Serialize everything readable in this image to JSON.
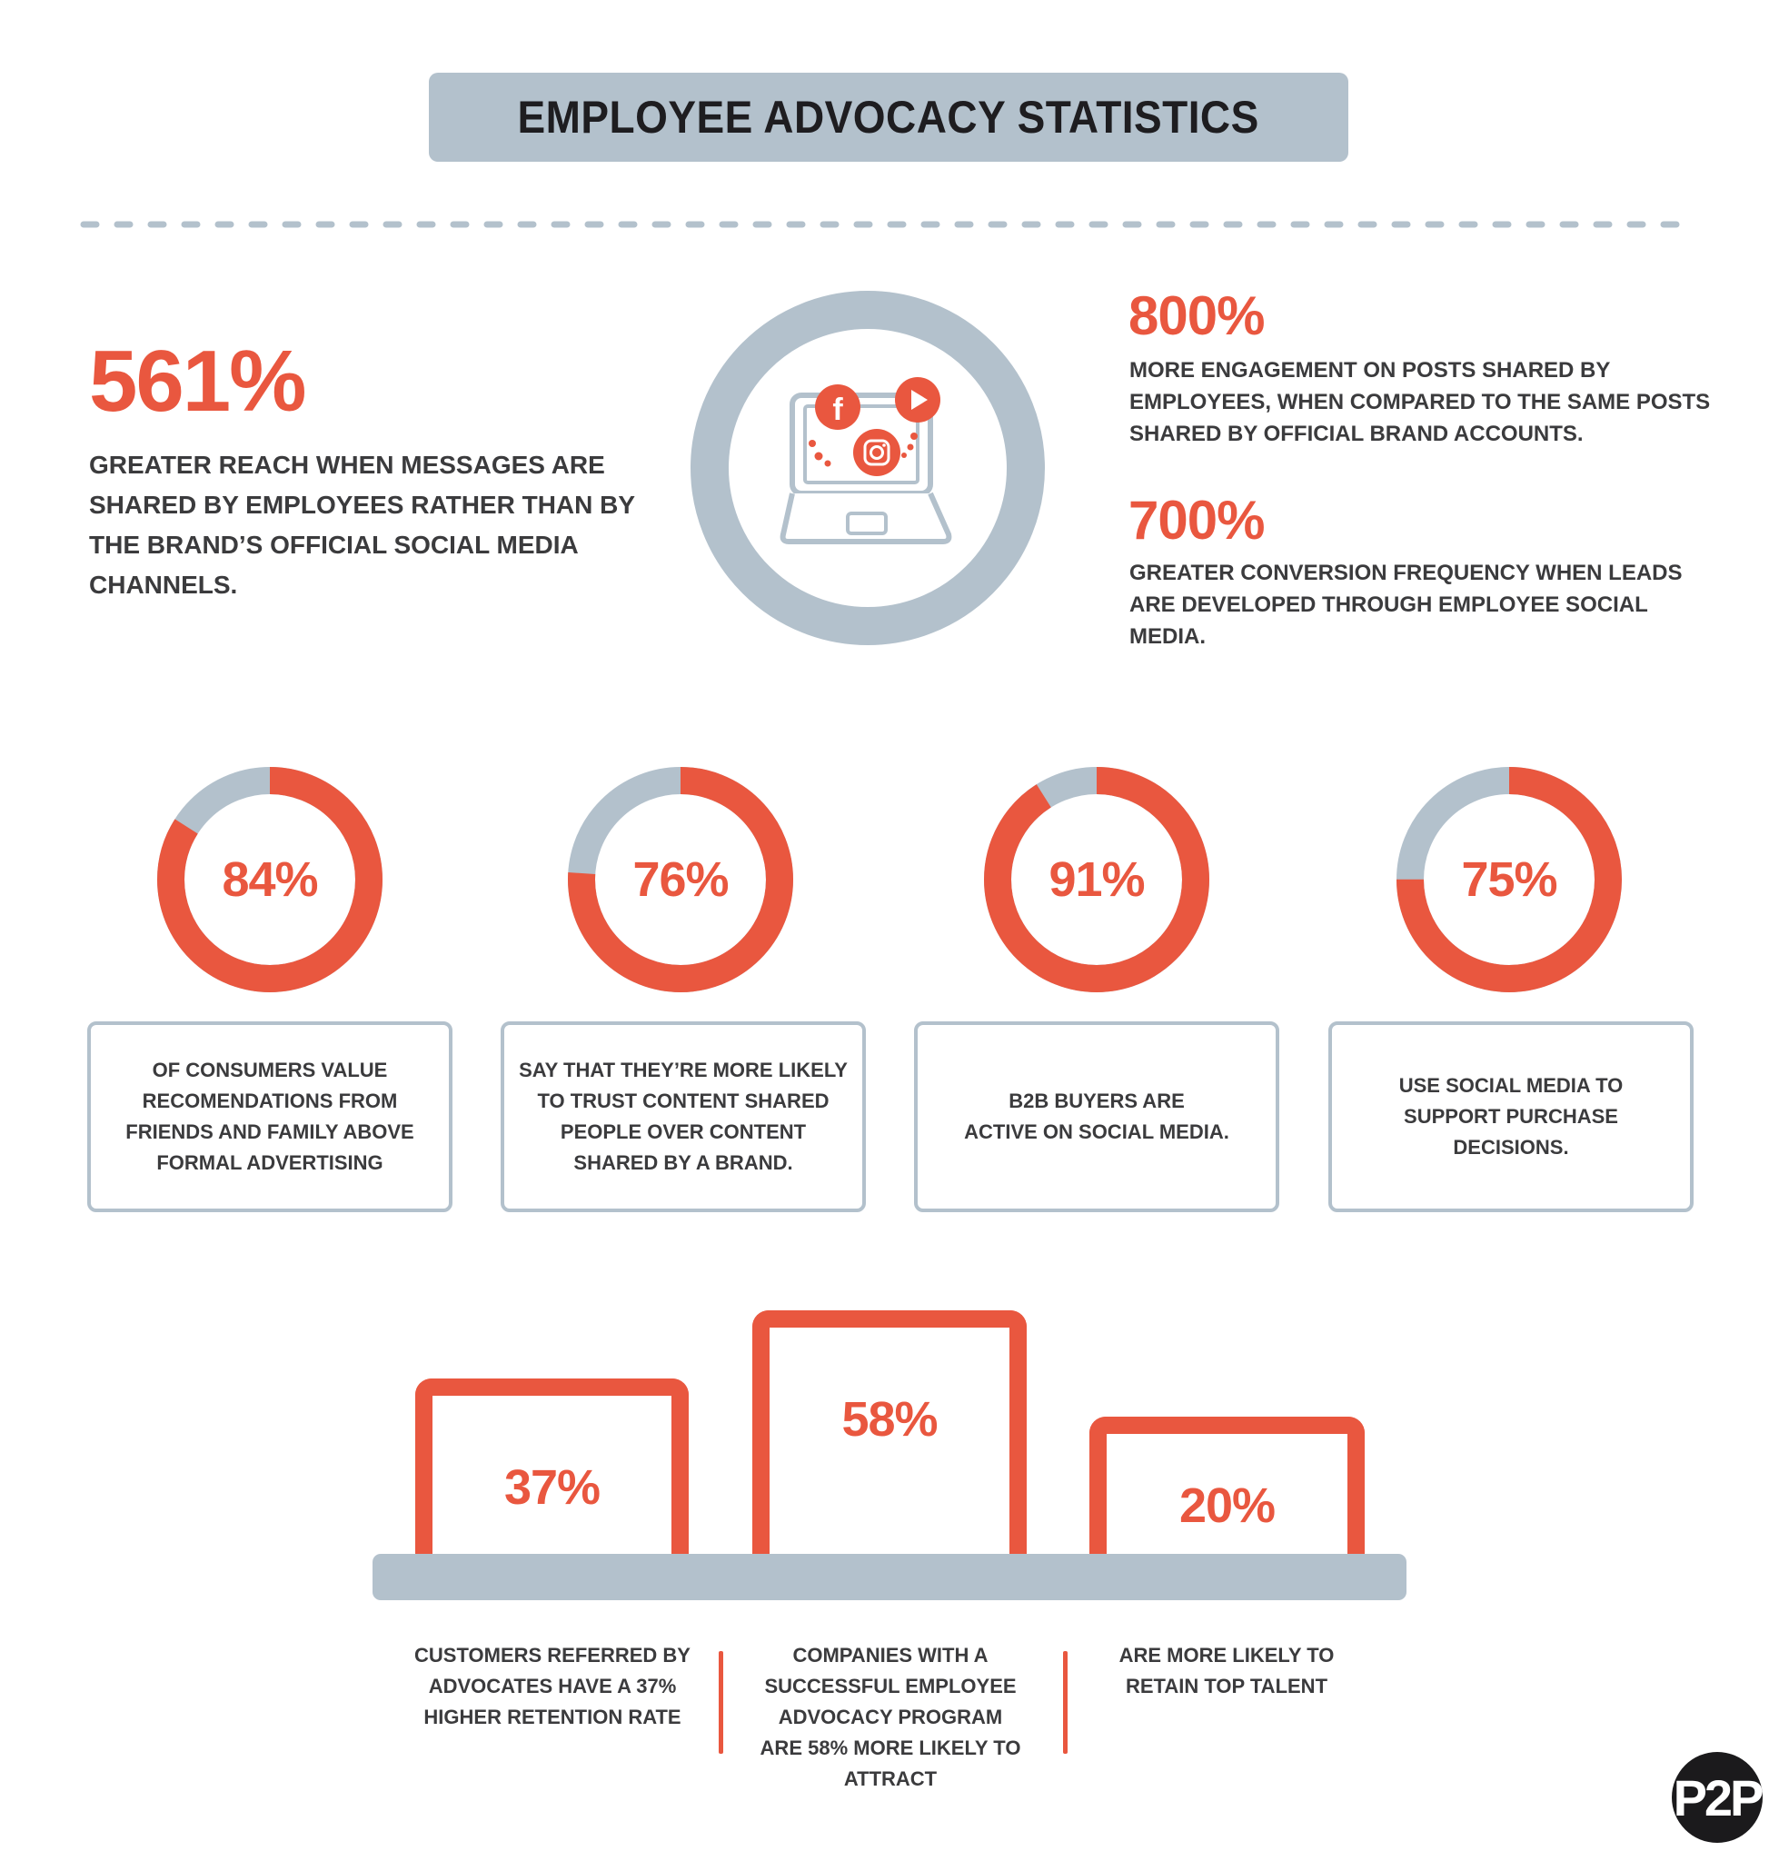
{
  "header": {
    "title": "EMPLOYEE ADVOCACY STATISTICS"
  },
  "colors": {
    "accent": "#e9573f",
    "neutral": "#b3c1cc",
    "text": "#3b3b3d",
    "title_text": "#1e1d20"
  },
  "hero": {
    "left": {
      "value": "561%",
      "description": "GREATER REACH WHEN MESSAGES ARE SHARED BY EMPLOYEES RATHER THAN BY THE BRAND’S OFFICIAL SOCIAL MEDIA CHANNELS."
    },
    "icon": {
      "name": "laptop-social-media-icon",
      "badges": [
        "facebook-icon",
        "instagram-icon",
        "youtube-play-icon"
      ],
      "facebook_glyph": "f"
    },
    "right": [
      {
        "value": "800%",
        "description": "MORE ENGAGEMENT ON POSTS SHARED BY EMPLOYEES, WHEN COMPARED TO THE SAME POSTS SHARED BY OFFICIAL BRAND ACCOUNTS."
      },
      {
        "value": "700%",
        "description": "GREATER CONVERSION FREQUENCY WHEN LEADS ARE DEVELOPED THROUGH EMPLOYEE SOCIAL MEDIA."
      }
    ]
  },
  "donuts": [
    {
      "value": 84,
      "label": "84%",
      "description": "OF CONSUMERS VALUE\nRECOMENDATIONS FROM\nFRIENDS AND FAMILY ABOVE\nFORMAL ADVERTISING"
    },
    {
      "value": 76,
      "label": "76%",
      "description": "SAY THAT THEY’RE MORE LIKELY\nTO TRUST CONTENT SHARED\nPEOPLE OVER CONTENT\nSHARED BY A BRAND."
    },
    {
      "value": 91,
      "label": "91%",
      "description": "B2B BUYERS ARE\nACTIVE ON SOCIAL MEDIA."
    },
    {
      "value": 75,
      "label": "75%",
      "description": "USE SOCIAL MEDIA TO\nSUPPORT PURCHASE\nDECISIONS."
    }
  ],
  "bars": [
    {
      "value": 37,
      "label": "37%",
      "caption": "CUSTOMERS REFERRED BY\nADVOCATES HAVE A 37%\nHIGHER RETENTION RATE"
    },
    {
      "value": 58,
      "label": "58%",
      "caption": "COMPANIES WITH A\nSUCCESSFUL EMPLOYEE\nADVOCACY PROGRAM\nARE 58% MORE LIKELY TO\nATTRACT"
    },
    {
      "value": 20,
      "label": "20%",
      "caption": "ARE MORE LIKELY TO\nRETAIN TOP TALENT"
    }
  ],
  "logo": {
    "text": "P2P"
  }
}
